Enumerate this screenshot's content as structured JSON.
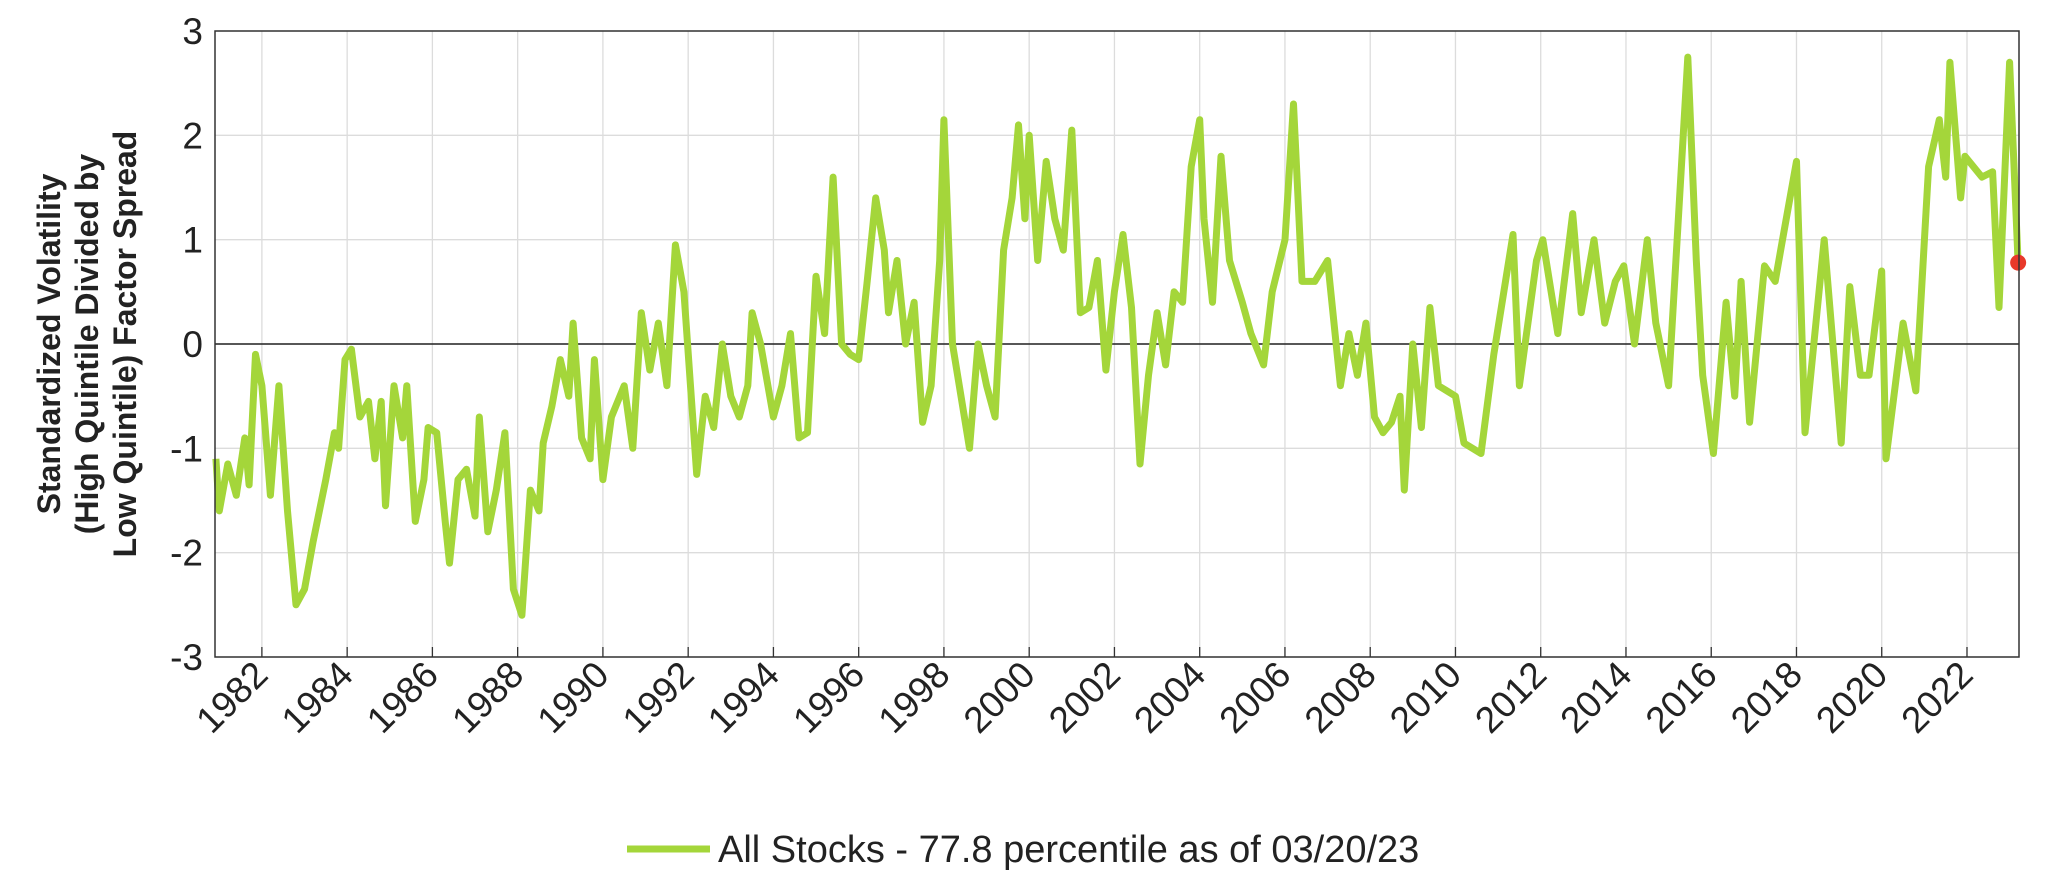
{
  "chart_data": {
    "type": "line",
    "ylabel": [
      "Standardized Volatility",
      "(High Quintile Divided by",
      "Low Quintile) Factor Spread"
    ],
    "x": [
      1980.92,
      1981.0,
      1981.2,
      1981.4,
      1981.6,
      1981.7,
      1981.85,
      1982.0,
      1982.2,
      1982.4,
      1982.6,
      1982.8,
      1983.0,
      1983.2,
      1983.5,
      1983.7,
      1983.8,
      1983.95,
      1984.1,
      1984.3,
      1984.5,
      1984.65,
      1984.8,
      1984.9,
      1985.1,
      1985.3,
      1985.4,
      1985.6,
      1985.8,
      1985.9,
      1986.1,
      1986.3,
      1986.4,
      1986.6,
      1986.8,
      1987.0,
      1987.1,
      1987.3,
      1987.5,
      1987.7,
      1987.9,
      1988.1,
      1988.3,
      1988.5,
      1988.6,
      1988.8,
      1989.0,
      1989.2,
      1989.3,
      1989.5,
      1989.7,
      1989.8,
      1990.0,
      1990.2,
      1990.5,
      1990.7,
      1990.9,
      1991.1,
      1991.3,
      1991.5,
      1991.7,
      1991.9,
      1992.2,
      1992.4,
      1992.6,
      1992.8,
      1993.0,
      1993.2,
      1993.4,
      1993.5,
      1993.7,
      1994.0,
      1994.2,
      1994.4,
      1994.6,
      1994.8,
      1995.0,
      1995.2,
      1995.4,
      1995.6,
      1995.8,
      1996.0,
      1996.2,
      1996.4,
      1996.6,
      1996.7,
      1996.9,
      1997.1,
      1997.3,
      1997.5,
      1997.7,
      1997.9,
      1998.0,
      1998.2,
      1998.4,
      1998.6,
      1998.8,
      1999.0,
      1999.2,
      1999.4,
      1999.6,
      1999.75,
      1999.9,
      2000.0,
      2000.2,
      2000.4,
      2000.6,
      2000.8,
      2001.0,
      2001.2,
      2001.4,
      2001.6,
      2001.8,
      2002.0,
      2002.2,
      2002.4,
      2002.6,
      2002.8,
      2003.0,
      2003.2,
      2003.4,
      2003.6,
      2003.8,
      2004.0,
      2004.1,
      2004.3,
      2004.5,
      2004.7,
      2005.0,
      2005.2,
      2005.5,
      2005.7,
      2006.0,
      2006.2,
      2006.4,
      2006.7,
      2007.0,
      2007.3,
      2007.5,
      2007.7,
      2007.9,
      2008.1,
      2008.3,
      2008.5,
      2008.7,
      2008.8,
      2009.0,
      2009.2,
      2009.4,
      2009.6,
      2009.8,
      2010.0,
      2010.2,
      2010.6,
      2010.9,
      2011.35,
      2011.5,
      2011.9,
      2012.05,
      2012.4,
      2012.75,
      2012.95,
      2013.25,
      2013.5,
      2013.75,
      2013.95,
      2014.2,
      2014.5,
      2014.7,
      2015.0,
      2015.45,
      2015.65,
      2015.8,
      2016.05,
      2016.35,
      2016.55,
      2016.7,
      2016.9,
      2017.25,
      2017.5,
      2017.65,
      2018.0,
      2018.2,
      2018.65,
      2019.05,
      2019.25,
      2019.5,
      2019.7,
      2020.0,
      2020.1,
      2020.5,
      2020.8,
      2021.1,
      2021.35,
      2021.5,
      2021.6,
      2021.85,
      2021.95,
      2022.35,
      2022.6,
      2022.75,
      2023.0,
      2023.2
    ],
    "series": [
      {
        "name": "All Stocks - 77.8 percentile as of 03/20/23",
        "color": "#a4d63a",
        "values": [
          -1.1,
          -1.6,
          -1.15,
          -1.45,
          -0.9,
          -1.35,
          -0.1,
          -0.4,
          -1.45,
          -0.4,
          -1.6,
          -2.5,
          -2.35,
          -1.9,
          -1.3,
          -0.85,
          -1.0,
          -0.15,
          -0.05,
          -0.7,
          -0.55,
          -1.1,
          -0.55,
          -1.55,
          -0.4,
          -0.9,
          -0.4,
          -1.7,
          -1.3,
          -0.8,
          -0.85,
          -1.7,
          -2.1,
          -1.3,
          -1.2,
          -1.65,
          -0.7,
          -1.8,
          -1.4,
          -0.85,
          -2.35,
          -2.6,
          -1.4,
          -1.6,
          -0.95,
          -0.6,
          -0.15,
          -0.5,
          0.2,
          -0.9,
          -1.1,
          -0.15,
          -1.3,
          -0.7,
          -0.4,
          -1.0,
          0.3,
          -0.25,
          0.2,
          -0.4,
          0.95,
          0.5,
          -1.25,
          -0.5,
          -0.8,
          0.0,
          -0.5,
          -0.7,
          -0.4,
          0.3,
          0.0,
          -0.7,
          -0.4,
          0.1,
          -0.9,
          -0.85,
          0.65,
          0.1,
          1.6,
          0.0,
          -0.1,
          -0.15,
          0.6,
          1.4,
          0.9,
          0.3,
          0.8,
          0.0,
          0.4,
          -0.75,
          -0.4,
          0.8,
          2.15,
          0.0,
          -0.5,
          -1.0,
          0.0,
          -0.4,
          -0.7,
          0.9,
          1.4,
          2.1,
          1.2,
          2.0,
          0.8,
          1.75,
          1.2,
          0.9,
          2.05,
          0.3,
          0.35,
          0.8,
          -0.25,
          0.5,
          1.05,
          0.35,
          -1.15,
          -0.3,
          0.3,
          -0.2,
          0.5,
          0.4,
          1.7,
          2.15,
          1.2,
          0.4,
          1.8,
          0.8,
          0.4,
          0.1,
          -0.2,
          0.5,
          1.0,
          2.3,
          0.6,
          0.6,
          0.8,
          -0.4,
          0.1,
          -0.3,
          0.2,
          -0.7,
          -0.85,
          -0.75,
          -0.5,
          -1.4,
          0.0,
          -0.8,
          0.35,
          -0.4,
          -0.45,
          -0.5,
          -0.95,
          -1.05,
          -0.1,
          1.05,
          -0.4,
          0.8,
          1.0,
          0.1,
          1.25,
          0.3,
          1.0,
          0.2,
          0.6,
          0.75,
          0.0,
          1.0,
          0.2,
          -0.4,
          2.75,
          0.8,
          -0.3,
          -1.05,
          0.4,
          -0.5,
          0.6,
          -0.75,
          0.75,
          0.6,
          0.95,
          1.75,
          -0.85,
          1.0,
          -0.95,
          0.55,
          -0.3,
          -0.3,
          0.7,
          -1.1,
          0.2,
          -0.45,
          1.7,
          2.15,
          1.6,
          2.7,
          1.4,
          1.8,
          1.6,
          1.65,
          0.35,
          2.7,
          0.78
        ]
      }
    ],
    "highlight_point": {
      "x": 2023.2,
      "value": 0.78,
      "color": "#e8392a"
    },
    "hline": 0,
    "xlim": [
      1980.9,
      2023.22
    ],
    "xticks": [
      1982,
      1984,
      1986,
      1988,
      1990,
      1992,
      1994,
      1996,
      1998,
      2000,
      2002,
      2004,
      2006,
      2008,
      2010,
      2012,
      2014,
      2016,
      2018,
      2020,
      2022
    ],
    "ylim": [
      -3,
      3
    ],
    "yticks": [
      -3,
      -2,
      -1,
      0,
      1,
      2,
      3
    ],
    "grid": true
  }
}
